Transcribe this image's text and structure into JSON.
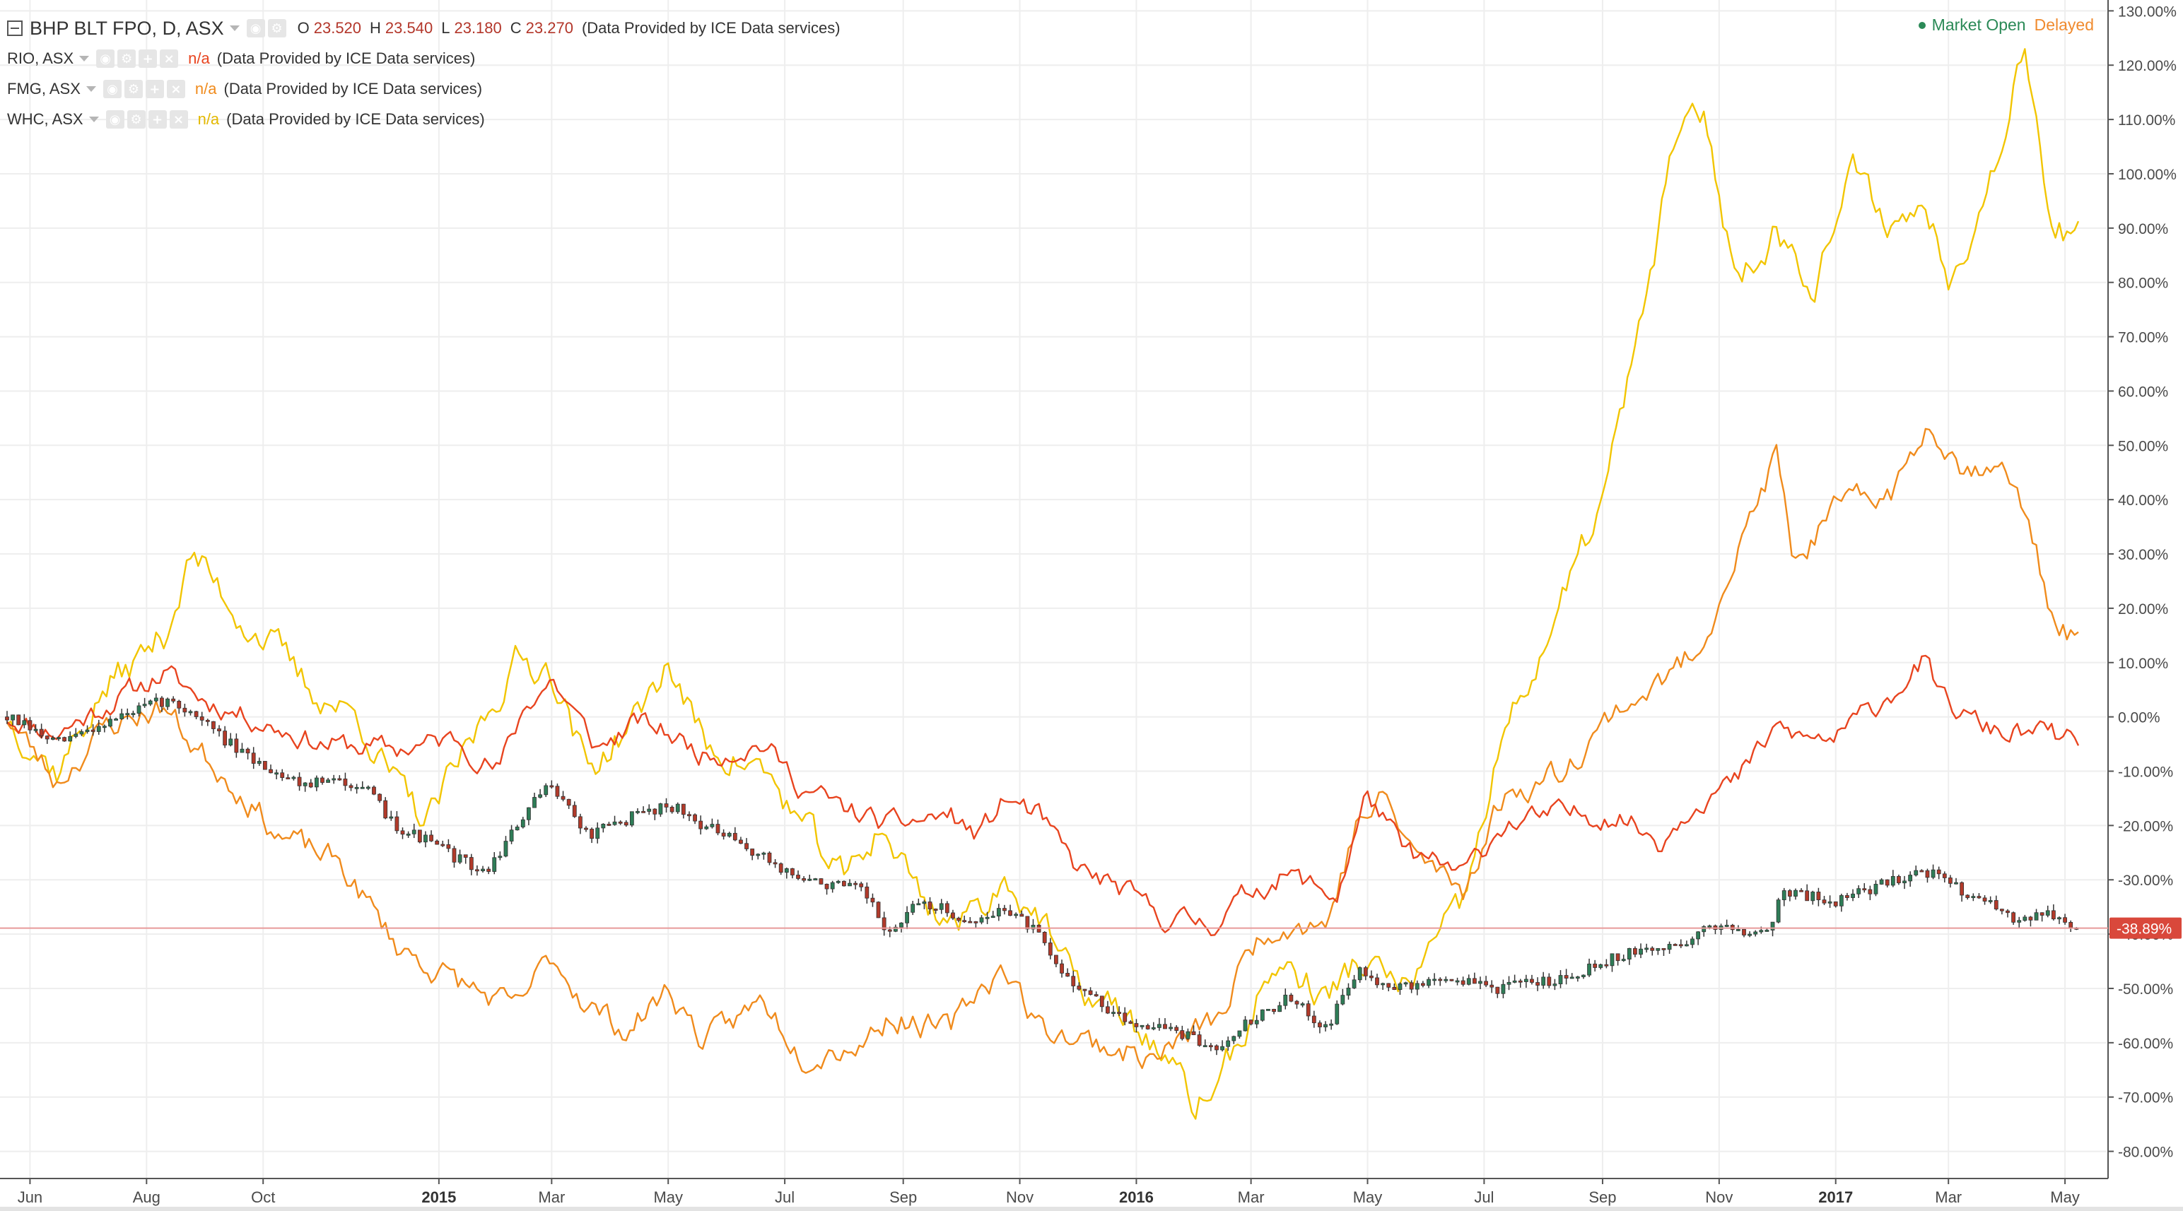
{
  "legend": {
    "main": {
      "symbol": "BHP BLT FPO, D, ASX",
      "ohlc": [
        {
          "label": "O",
          "value": "23.520"
        },
        {
          "label": "H",
          "value": "23.540"
        },
        {
          "label": "L",
          "value": "23.180"
        },
        {
          "label": "C",
          "value": "23.270"
        }
      ],
      "provider": "(Data Provided by ICE Data services)"
    },
    "compare": [
      {
        "symbol": "RIO, ASX",
        "value": "n/a",
        "provider": "(Data Provided by ICE Data services)",
        "color": "#e8441f"
      },
      {
        "symbol": "FMG, ASX",
        "value": "n/a",
        "provider": "(Data Provided by ICE Data services)",
        "color": "#f08b1c"
      },
      {
        "symbol": "WHC, ASX",
        "value": "n/a",
        "provider": "(Data Provided by ICE Data services)",
        "color": "#f2c500"
      }
    ]
  },
  "status": {
    "open_label": "Market Open",
    "delayed_label": "Delayed"
  },
  "price_label": "-38.89%",
  "colors": {
    "bull": "#2e7d57",
    "bear": "#b23a2a",
    "rio": "#e8441f",
    "fmg": "#f08b1c",
    "whc": "#f2c500",
    "price_line": "#e89a9a",
    "price_label_bg": "#d9483b",
    "grid": "#eeeeee"
  },
  "chart_data": {
    "type": "line",
    "y_unit": "%",
    "ylim": [
      -85,
      132
    ],
    "y_ticks": [
      "130.00%",
      "120.00%",
      "110.00%",
      "100.00%",
      "90.00%",
      "80.00%",
      "70.00%",
      "60.00%",
      "50.00%",
      "40.00%",
      "30.00%",
      "20.00%",
      "10.00%",
      "0.00%",
      "-10.00%",
      "-20.00%",
      "-30.00%",
      "-40.00%",
      "-50.00%",
      "-60.00%",
      "-70.00%",
      "-80.00%"
    ],
    "x_tick_labels": [
      "Jun",
      "Aug",
      "Oct",
      "2015",
      "Mar",
      "May",
      "Jul",
      "Sep",
      "Nov",
      "2016",
      "Mar",
      "May",
      "Jul",
      "Sep",
      "Nov",
      "2017",
      "Mar",
      "May"
    ],
    "x_range": [
      "2014-05-20",
      "2017-05-08"
    ],
    "x_ticks": [
      "2014-06-01",
      "2014-08-01",
      "2014-10-01",
      "2015-01-01",
      "2015-03-01",
      "2015-05-01",
      "2015-07-01",
      "2015-09-01",
      "2015-11-01",
      "2016-01-01",
      "2016-03-01",
      "2016-05-01",
      "2016-07-01",
      "2016-09-01",
      "2016-11-01",
      "2017-01-01",
      "2017-03-01",
      "2017-05-01"
    ],
    "grid": true,
    "last_value": -38.89,
    "series": [
      {
        "name": "BHP BLT FPO, D, ASX",
        "style": "candlestick",
        "points": [
          [
            "2014-05-20",
            0
          ],
          [
            "2014-06-15",
            -5
          ],
          [
            "2014-07-10",
            -1
          ],
          [
            "2014-08-10",
            3
          ],
          [
            "2014-08-25",
            1
          ],
          [
            "2014-09-20",
            -7
          ],
          [
            "2014-10-20",
            -12
          ],
          [
            "2014-11-20",
            -12
          ],
          [
            "2014-12-10",
            -20
          ],
          [
            "2015-01-01",
            -24
          ],
          [
            "2015-01-25",
            -29
          ],
          [
            "2015-02-15",
            -18
          ],
          [
            "2015-03-01",
            -12
          ],
          [
            "2015-03-20",
            -22
          ],
          [
            "2015-04-15",
            -18
          ],
          [
            "2015-05-01",
            -16
          ],
          [
            "2015-05-20",
            -20
          ],
          [
            "2015-06-20",
            -26
          ],
          [
            "2015-07-10",
            -30
          ],
          [
            "2015-08-10",
            -32
          ],
          [
            "2015-08-25",
            -40
          ],
          [
            "2015-09-10",
            -34
          ],
          [
            "2015-10-10",
            -38
          ],
          [
            "2015-10-25",
            -35
          ],
          [
            "2015-11-10",
            -40
          ],
          [
            "2015-11-20",
            -46
          ],
          [
            "2015-12-10",
            -52
          ],
          [
            "2015-12-25",
            -56
          ],
          [
            "2016-01-15",
            -57
          ],
          [
            "2016-02-10",
            -61
          ],
          [
            "2016-02-25",
            -57
          ],
          [
            "2016-03-20",
            -52
          ],
          [
            "2016-04-10",
            -57
          ],
          [
            "2016-04-25",
            -47
          ],
          [
            "2016-05-20",
            -50
          ],
          [
            "2016-06-10",
            -48
          ],
          [
            "2016-07-10",
            -50
          ],
          [
            "2016-08-10",
            -48
          ],
          [
            "2016-09-10",
            -44
          ],
          [
            "2016-10-10",
            -42
          ],
          [
            "2016-11-01",
            -38
          ],
          [
            "2016-11-25",
            -40
          ],
          [
            "2016-12-05",
            -32
          ],
          [
            "2017-01-01",
            -34
          ],
          [
            "2017-02-01",
            -30
          ],
          [
            "2017-02-15",
            -28
          ],
          [
            "2017-03-15",
            -33
          ],
          [
            "2017-04-01",
            -37
          ],
          [
            "2017-04-20",
            -36
          ],
          [
            "2017-05-08",
            -38.9
          ]
        ]
      },
      {
        "name": "RIO, ASX",
        "style": "line",
        "points": [
          [
            "2014-05-20",
            0
          ],
          [
            "2014-06-15",
            -3
          ],
          [
            "2014-07-10",
            2
          ],
          [
            "2014-08-10",
            8
          ],
          [
            "2014-09-01",
            3
          ],
          [
            "2014-10-01",
            -1
          ],
          [
            "2014-11-01",
            -5
          ],
          [
            "2014-12-10",
            -6
          ],
          [
            "2015-01-10",
            -4
          ],
          [
            "2015-02-01",
            -10
          ],
          [
            "2015-02-15",
            2
          ],
          [
            "2015-03-01",
            7
          ],
          [
            "2015-03-25",
            -6
          ],
          [
            "2015-04-15",
            -1
          ],
          [
            "2015-05-01",
            -3
          ],
          [
            "2015-05-20",
            -7
          ],
          [
            "2015-06-20",
            -5
          ],
          [
            "2015-07-10",
            -13
          ],
          [
            "2015-08-01",
            -17
          ],
          [
            "2015-08-25",
            -20
          ],
          [
            "2015-09-25",
            -18
          ],
          [
            "2015-10-10",
            -22
          ],
          [
            "2015-10-25",
            -15
          ],
          [
            "2015-11-10",
            -18
          ],
          [
            "2015-12-01",
            -28
          ],
          [
            "2015-12-25",
            -32
          ],
          [
            "2016-01-15",
            -37
          ],
          [
            "2016-02-10",
            -38
          ],
          [
            "2016-03-01",
            -32
          ],
          [
            "2016-03-20",
            -29
          ],
          [
            "2016-04-15",
            -33
          ],
          [
            "2016-05-01",
            -14
          ],
          [
            "2016-05-20",
            -25
          ],
          [
            "2016-06-20",
            -29
          ],
          [
            "2016-07-10",
            -20
          ],
          [
            "2016-08-10",
            -18
          ],
          [
            "2016-09-10",
            -18
          ],
          [
            "2016-10-01",
            -23
          ],
          [
            "2016-10-20",
            -15
          ],
          [
            "2016-11-10",
            -12
          ],
          [
            "2016-12-01",
            -2
          ],
          [
            "2016-12-15",
            -4
          ],
          [
            "2017-01-01",
            -4
          ],
          [
            "2017-02-01",
            5
          ],
          [
            "2017-02-15",
            10
          ],
          [
            "2017-03-01",
            2
          ],
          [
            "2017-03-20",
            -2
          ],
          [
            "2017-04-01",
            -3
          ],
          [
            "2017-04-20",
            -3
          ],
          [
            "2017-05-08",
            -5
          ]
        ]
      },
      {
        "name": "FMG, ASX",
        "style": "line",
        "points": [
          [
            "2014-05-20",
            0
          ],
          [
            "2014-06-15",
            -12
          ],
          [
            "2014-07-10",
            -2
          ],
          [
            "2014-08-10",
            2
          ],
          [
            "2014-08-25",
            -5
          ],
          [
            "2014-09-15",
            -12
          ],
          [
            "2014-10-10",
            -22
          ],
          [
            "2014-11-10",
            -27
          ],
          [
            "2014-12-10",
            -42
          ],
          [
            "2015-01-01",
            -47
          ],
          [
            "2015-02-10",
            -54
          ],
          [
            "2015-03-01",
            -44
          ],
          [
            "2015-03-20",
            -53
          ],
          [
            "2015-04-10",
            -58
          ],
          [
            "2015-05-01",
            -50
          ],
          [
            "2015-05-20",
            -60
          ],
          [
            "2015-06-20",
            -52
          ],
          [
            "2015-07-10",
            -62
          ],
          [
            "2015-08-10",
            -60
          ],
          [
            "2015-08-25",
            -55
          ],
          [
            "2015-09-25",
            -58
          ],
          [
            "2015-10-10",
            -50
          ],
          [
            "2015-10-25",
            -46
          ],
          [
            "2015-11-10",
            -57
          ],
          [
            "2015-12-10",
            -60
          ],
          [
            "2016-01-10",
            -63
          ],
          [
            "2016-02-01",
            -58
          ],
          [
            "2016-02-15",
            -55
          ],
          [
            "2016-03-01",
            -42
          ],
          [
            "2016-03-15",
            -38
          ],
          [
            "2016-04-10",
            -38
          ],
          [
            "2016-04-25",
            -20
          ],
          [
            "2016-05-10",
            -15
          ],
          [
            "2016-05-25",
            -25
          ],
          [
            "2016-06-20",
            -32
          ],
          [
            "2016-07-10",
            -15
          ],
          [
            "2016-08-10",
            -10
          ],
          [
            "2016-09-10",
            2
          ],
          [
            "2016-10-01",
            6
          ],
          [
            "2016-10-20",
            12
          ],
          [
            "2016-11-10",
            30
          ],
          [
            "2016-12-01",
            48
          ],
          [
            "2016-12-10",
            28
          ],
          [
            "2017-01-01",
            38
          ],
          [
            "2017-02-01",
            42
          ],
          [
            "2017-02-20",
            55
          ],
          [
            "2017-03-10",
            45
          ],
          [
            "2017-03-25",
            48
          ],
          [
            "2017-04-10",
            38
          ],
          [
            "2017-04-25",
            18
          ],
          [
            "2017-05-08",
            14
          ]
        ]
      },
      {
        "name": "WHC, ASX",
        "style": "line",
        "points": [
          [
            "2014-05-20",
            0
          ],
          [
            "2014-06-15",
            -10
          ],
          [
            "2014-07-10",
            5
          ],
          [
            "2014-08-10",
            15
          ],
          [
            "2014-08-25",
            30
          ],
          [
            "2014-09-20",
            18
          ],
          [
            "2014-10-10",
            12
          ],
          [
            "2014-10-25",
            5
          ],
          [
            "2014-11-20",
            0
          ],
          [
            "2014-12-05",
            -10
          ],
          [
            "2014-12-25",
            -20
          ],
          [
            "2015-01-25",
            0
          ],
          [
            "2015-02-10",
            10
          ],
          [
            "2015-03-01",
            9
          ],
          [
            "2015-03-20",
            -10
          ],
          [
            "2015-04-15",
            0
          ],
          [
            "2015-05-01",
            10
          ],
          [
            "2015-05-20",
            -5
          ],
          [
            "2015-06-20",
            -10
          ],
          [
            "2015-07-10",
            -20
          ],
          [
            "2015-08-01",
            -30
          ],
          [
            "2015-08-20",
            -20
          ],
          [
            "2015-09-15",
            -35
          ],
          [
            "2015-10-01",
            -38
          ],
          [
            "2015-10-25",
            -30
          ],
          [
            "2015-11-10",
            -36
          ],
          [
            "2015-12-01",
            -50
          ],
          [
            "2015-12-25",
            -55
          ],
          [
            "2016-01-15",
            -62
          ],
          [
            "2016-02-01",
            -72
          ],
          [
            "2016-02-15",
            -66
          ],
          [
            "2016-03-01",
            -55
          ],
          [
            "2016-03-15",
            -45
          ],
          [
            "2016-04-10",
            -52
          ],
          [
            "2016-04-25",
            -45
          ],
          [
            "2016-05-20",
            -50
          ],
          [
            "2016-06-20",
            -35
          ],
          [
            "2016-07-10",
            -5
          ],
          [
            "2016-08-10",
            20
          ],
          [
            "2016-09-01",
            40
          ],
          [
            "2016-09-20",
            70
          ],
          [
            "2016-10-10",
            108
          ],
          [
            "2016-10-25",
            110
          ],
          [
            "2016-11-10",
            80
          ],
          [
            "2016-12-01",
            90
          ],
          [
            "2016-12-20",
            80
          ],
          [
            "2017-01-10",
            100
          ],
          [
            "2017-02-01",
            90
          ],
          [
            "2017-02-15",
            95
          ],
          [
            "2017-03-01",
            82
          ],
          [
            "2017-03-20",
            95
          ],
          [
            "2017-04-10",
            125
          ],
          [
            "2017-04-25",
            90
          ],
          [
            "2017-05-08",
            88
          ]
        ]
      }
    ]
  }
}
